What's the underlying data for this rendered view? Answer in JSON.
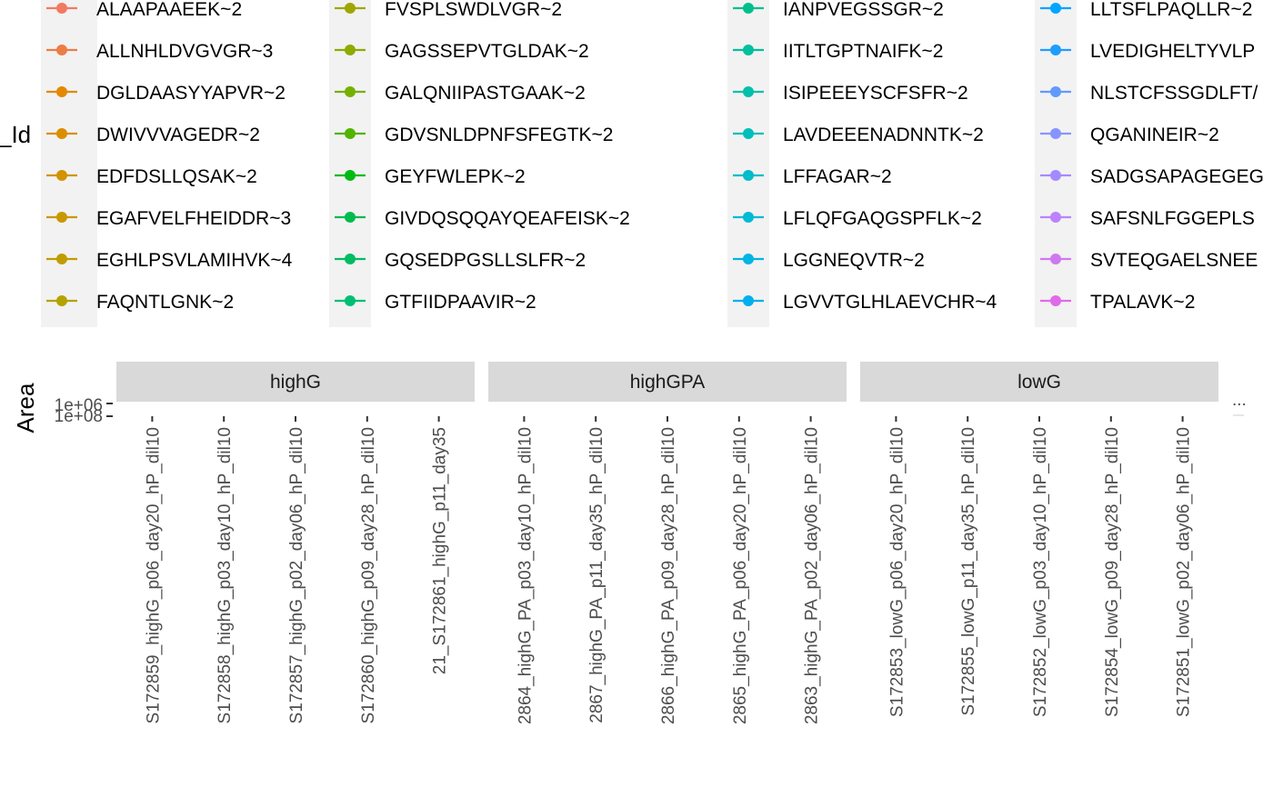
{
  "chart_data": {
    "type": "line",
    "legend": {
      "title": "_Id",
      "position": "top",
      "columns": [
        [
          {
            "label": "ALAAPAAEEK~2",
            "color": "#F17A5F"
          },
          {
            "label": "ALLNHLDVGVGR~3",
            "color": "#EC7D45"
          },
          {
            "label": "DGLDAASYYAPVR~2",
            "color": "#E38900"
          },
          {
            "label": "DWIVVVAGEDR~2",
            "color": "#DB8E00"
          },
          {
            "label": "EDFDSLLQSAK~2",
            "color": "#D29300"
          },
          {
            "label": "EGAFVELFHEIDDR~3",
            "color": "#C99800"
          },
          {
            "label": "EGHLPSVLAMIHVK~4",
            "color": "#BF9D00"
          },
          {
            "label": "FAQNTLGNK~2",
            "color": "#B4A200"
          }
        ],
        [
          {
            "label": "FVSPLSWDLVGR~2",
            "color": "#9EA700"
          },
          {
            "label": "GAGSSEPVTGLDAK~2",
            "color": "#8CAB00"
          },
          {
            "label": "GALQNIIPASTGAAK~2",
            "color": "#74B000"
          },
          {
            "label": "GDVSNLDPNFSFEGTK~2",
            "color": "#50B400"
          },
          {
            "label": "GEYFWLEPK~2",
            "color": "#00BA13"
          },
          {
            "label": "GIVDQSQQAYQEAFEISK~2",
            "color": "#00BB4E"
          },
          {
            "label": "GQSEDPGSLLSLFR~2",
            "color": "#00BC62"
          },
          {
            "label": "GTFIIDPAAVIR~2",
            "color": "#00BE73"
          }
        ],
        [
          {
            "label": "IANPVEGSSGR~2",
            "color": "#00BF8C"
          },
          {
            "label": "IITLTGPTNAIFK~2",
            "color": "#00C09D"
          },
          {
            "label": "ISIPEEEYSCFSFR~2",
            "color": "#00C0AC"
          },
          {
            "label": "LAVDEEENADNNTK~2",
            "color": "#00BFBB"
          },
          {
            "label": "LFFAGAR~2",
            "color": "#00BDC9"
          },
          {
            "label": "LFLQFGAQGSPFLK~2",
            "color": "#00BAD6"
          },
          {
            "label": "LGGNEQVTR~2",
            "color": "#00B5E3"
          },
          {
            "label": "LGVVTGLHLAEVCHR~4",
            "color": "#00AFEE"
          }
        ],
        [
          {
            "label": "LLTSFLPAQLLR~2",
            "color": "#00A5FF"
          },
          {
            "label": "LVEDIGHELTYVLP",
            "color": "#1E9DFF"
          },
          {
            "label": "NLSTCFSSGDLFT/",
            "color": "#6199FF"
          },
          {
            "label": "QGANINEIR~2",
            "color": "#8794FF"
          },
          {
            "label": "SADGSAPAGEGEG",
            "color": "#A58AFF"
          },
          {
            "label": "SAFSNLFGGEPLS",
            "color": "#BC82FF"
          },
          {
            "label": "SVTEQGAELSNEE",
            "color": "#CF79F0"
          },
          {
            "label": "TPALAVK~2",
            "color": "#E06BE8"
          }
        ]
      ]
    },
    "facets": [
      {
        "label": "highG",
        "categories": [
          "S172859_highG_p06_day20_hP_dil10",
          "S172858_highG_p03_day10_hP_dil10",
          "S172857_highG_p02_day06_hP_dil10",
          "S172860_highG_p09_day28_hP_dil10",
          "21_S172861_highG_p11_day35"
        ]
      },
      {
        "label": "highGPA",
        "categories": [
          "2864_highG_PA_p03_day10_hP_dil10",
          "2867_highG_PA_p11_day35_hP_dil10",
          "2866_highG_PA_p09_day28_hP_dil10",
          "2865_highG_PA_p06_day20_hP_dil10",
          "2863_highG_PA_p02_day06_hP_dil10"
        ]
      },
      {
        "label": "lowG",
        "categories": [
          "S172853_lowG_p06_day20_hP_dil10",
          "S172855_lowG_p11_day35_hP_dil10",
          "S172852_lowG_p03_day10_hP_dil10",
          "S172854_lowG_p09_day28_hP_dil10",
          "S172851_lowG_p02_day06_hP_dil10"
        ]
      }
    ],
    "ylabel": "Area",
    "y_ticks": [
      "1e+06",
      "1e+08"
    ],
    "truncation_mark": "..."
  }
}
